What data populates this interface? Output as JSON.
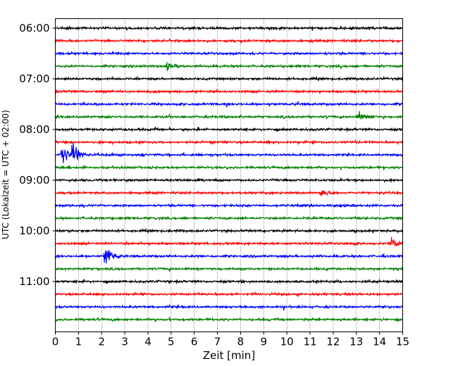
{
  "chart_data": {
    "type": "line",
    "title": "",
    "xlabel": "Zeit  [min]",
    "ylabel": "UTC (Lokalzeit = UTC + 02:00)",
    "xlim": [
      0,
      15
    ],
    "x_ticks": [
      "0",
      "1",
      "2",
      "3",
      "4",
      "5",
      "6",
      "7",
      "8",
      "9",
      "10",
      "11",
      "12",
      "13",
      "14",
      "15"
    ],
    "y_tick_labels": [
      "06:00",
      "07:00",
      "08:00",
      "09:00",
      "10:00",
      "11:00"
    ],
    "trace_start_utc": "06:00",
    "trace_interval_minutes": 15,
    "trace_count": 24,
    "trace_colors": [
      "#000000",
      "#ff0000",
      "#0000ff",
      "#008000"
    ],
    "grid": "vertical dotted at each minute",
    "events": [
      {
        "trace_start": "08:30",
        "minute": 0.3,
        "relative_amplitude": 1.0,
        "duration_min": 0.5
      },
      {
        "trace_start": "08:30",
        "minute": 0.75,
        "relative_amplitude": 1.0,
        "duration_min": 0.6
      },
      {
        "trace_start": "10:30",
        "minute": 2.15,
        "relative_amplitude": 0.75,
        "duration_min": 0.7
      },
      {
        "trace_start": "06:45",
        "minute": 4.8,
        "relative_amplitude": 0.25,
        "duration_min": 0.6
      },
      {
        "trace_start": "07:45",
        "minute": 13.1,
        "relative_amplitude": 0.3,
        "duration_min": 0.8
      },
      {
        "trace_start": "10:15",
        "minute": 14.5,
        "relative_amplitude": 0.35,
        "duration_min": 0.7
      },
      {
        "trace_start": "09:15",
        "minute": 11.5,
        "relative_amplitude": 0.25,
        "duration_min": 0.8
      }
    ]
  }
}
